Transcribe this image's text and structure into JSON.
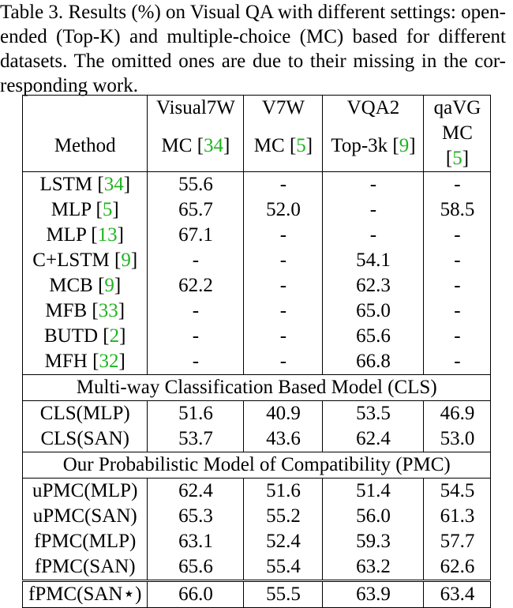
{
  "caption": {
    "lines": [
      "Table 3. Results (%) on Visual QA with different settings: open-",
      "ended (Top-K) and multiple-choice (MC) based for different",
      "datasets.  The omitted ones are due to their missing in the cor-",
      "responding work."
    ]
  },
  "colors": {
    "citation": "#1fb31f"
  },
  "header": {
    "row1": [
      "",
      "Visual7W",
      "V7W",
      "VQA2",
      "qaVG"
    ],
    "row2": [
      {
        "text": "Method",
        "ref": ""
      },
      {
        "text": "MC [",
        "ref": "34",
        "close": "]"
      },
      {
        "text": "MC [",
        "ref": "5",
        "close": "]"
      },
      {
        "text": "Top-3k [",
        "ref": "9",
        "close": "]"
      },
      {
        "text": "MC [",
        "ref": "5",
        "close": "]"
      }
    ]
  },
  "baselines": [
    {
      "method": "LSTM [",
      "ref": "34",
      "vals": [
        "55.6",
        "-",
        "-",
        "-"
      ]
    },
    {
      "method": "MLP [",
      "ref": "5",
      "vals": [
        "65.7",
        "52.0",
        "-",
        "58.5"
      ]
    },
    {
      "method": "MLP [",
      "ref": "13",
      "vals": [
        "67.1",
        "-",
        "-",
        "-"
      ]
    },
    {
      "method": "C+LSTM [",
      "ref": "9",
      "vals": [
        "-",
        "-",
        "54.1",
        "-"
      ]
    },
    {
      "method": "MCB [",
      "ref": "9",
      "vals": [
        "62.2",
        "-",
        "62.3",
        "-"
      ]
    },
    {
      "method": "MFB [",
      "ref": "33",
      "vals": [
        "-",
        "-",
        "65.0",
        "-"
      ]
    },
    {
      "method": "BUTD [",
      "ref": "2",
      "vals": [
        "-",
        "-",
        "65.6",
        "-"
      ]
    },
    {
      "method": "MFH [",
      "ref": "32",
      "vals": [
        "-",
        "-",
        "66.8",
        "-"
      ]
    }
  ],
  "cls_section": {
    "title": "Multi-way Classification Based Model (CLS)",
    "rows": [
      {
        "method": "CLS(MLP)",
        "vals": [
          "51.6",
          "40.9",
          "53.5",
          "46.9"
        ]
      },
      {
        "method": "CLS(SAN)",
        "vals": [
          "53.7",
          "43.6",
          "62.4",
          "53.0"
        ]
      }
    ]
  },
  "pmc_section": {
    "title": "Our Probabilistic Model of Compatibility (PMC)",
    "rows": [
      {
        "method": "uPMC(MLP)",
        "vals": [
          "62.4",
          "51.6",
          "51.4",
          "54.5"
        ]
      },
      {
        "method": "uPMC(SAN)",
        "vals": [
          "65.3",
          "55.2",
          "56.0",
          "61.3"
        ]
      },
      {
        "method": "fPMC(MLP)",
        "vals": [
          "63.1",
          "52.4",
          "59.3",
          "57.7"
        ]
      },
      {
        "method": "fPMC(SAN)",
        "vals": [
          "65.6",
          "55.4",
          "63.2",
          "62.6"
        ]
      }
    ]
  },
  "final_row": {
    "method": "fPMC(SAN⋆)",
    "vals": [
      "66.0",
      "55.5",
      "63.9",
      "63.4"
    ]
  }
}
